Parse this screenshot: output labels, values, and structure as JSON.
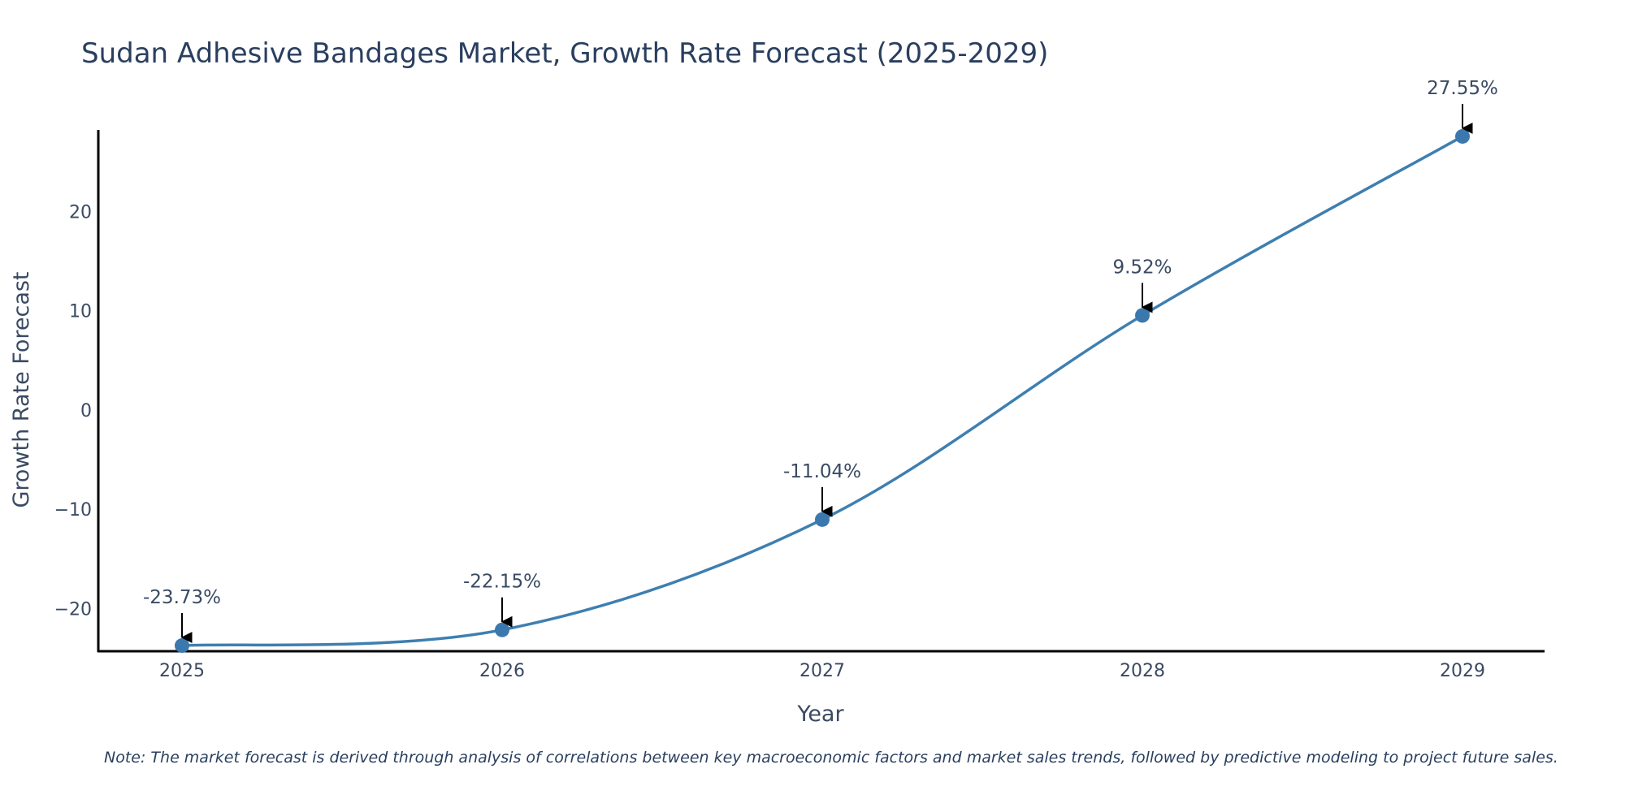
{
  "chart_data": {
    "type": "line",
    "title": "Sudan Adhesive Bandages Market, Growth Rate Forecast (2025-2029)",
    "xlabel": "Year",
    "ylabel": "Growth Rate Forecast",
    "categories": [
      "2025",
      "2026",
      "2027",
      "2028",
      "2029"
    ],
    "values": [
      -23.73,
      -22.15,
      -11.04,
      9.52,
      27.55
    ],
    "data_labels": [
      "-23.73%",
      "-22.15%",
      "-11.04%",
      "9.52%",
      "27.55%"
    ],
    "ylim": [
      -24.3,
      28.2
    ],
    "yticks": [
      -20,
      -10,
      0,
      10,
      20
    ],
    "ytick_labels": [
      "−20",
      "−10",
      "0",
      "10",
      "20"
    ],
    "line_color": "#3e7fb0",
    "marker_color": "#3b78ae",
    "grid": false,
    "legend": "none"
  },
  "note": "Note: The market forecast is derived through analysis of correlations between key macroeconomic factors and market sales trends, followed by predictive modeling to project future sales."
}
